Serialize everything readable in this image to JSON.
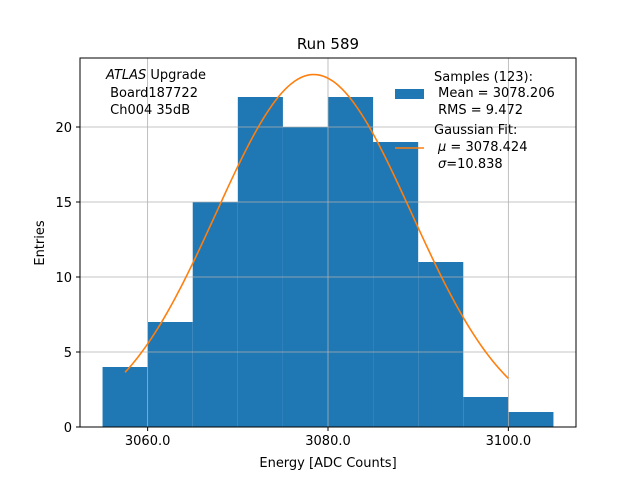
{
  "chart_data": {
    "type": "bar",
    "title": "Run 589",
    "xlabel": "Energy [ADC Counts]",
    "ylabel": "Entries",
    "xlim": [
      3052.5,
      3107.5
    ],
    "ylim": [
      0,
      24.6
    ],
    "grid": true,
    "x_ticks": [
      3060,
      3080,
      3100
    ],
    "x_tick_labels": [
      "3060.0",
      "3080.0",
      "3100.0"
    ],
    "y_ticks": [
      0,
      5,
      10,
      15,
      20
    ],
    "y_tick_labels": [
      "0",
      "5",
      "10",
      "15",
      "20"
    ],
    "bins": [
      {
        "x0": 3055,
        "x1": 3060,
        "value": 4
      },
      {
        "x0": 3060,
        "x1": 3065,
        "value": 7
      },
      {
        "x0": 3065,
        "x1": 3070,
        "value": 15
      },
      {
        "x0": 3070,
        "x1": 3075,
        "value": 22
      },
      {
        "x0": 3075,
        "x1": 3080,
        "value": 20
      },
      {
        "x0": 3080,
        "x1": 3085,
        "value": 22
      },
      {
        "x0": 3085,
        "x1": 3090,
        "value": 19
      },
      {
        "x0": 3090,
        "x1": 3095,
        "value": 11
      },
      {
        "x0": 3095,
        "x1": 3100,
        "value": 2
      },
      {
        "x0": 3100,
        "x1": 3105,
        "value": 1
      }
    ],
    "fit": {
      "mu": 3078.424,
      "sigma": 10.838,
      "amplitude": 23.5,
      "x_range": [
        3057.5,
        3100.0
      ]
    },
    "annotation": {
      "italic_word": "ATLAS",
      "line1_rest": " Upgrade",
      "line2": " Board187722",
      "line3": " Ch004 35dB"
    },
    "legend": {
      "placement": "top-right",
      "samples_line1": "Samples (123):",
      "samples_line2": " Mean = 3078.206",
      "samples_line3": " RMS = 9.472",
      "fit_line1": "Gaussian Fit:",
      "fit_line2_sym": "μ",
      "fit_line2_rest": " = 3078.424",
      "fit_line3_sym": "σ",
      "fit_line3_rest": "=10.838"
    },
    "colors": {
      "bars": "#1f77b4",
      "fit": "#ff7f0e",
      "grid": "#b0b0b0"
    }
  }
}
